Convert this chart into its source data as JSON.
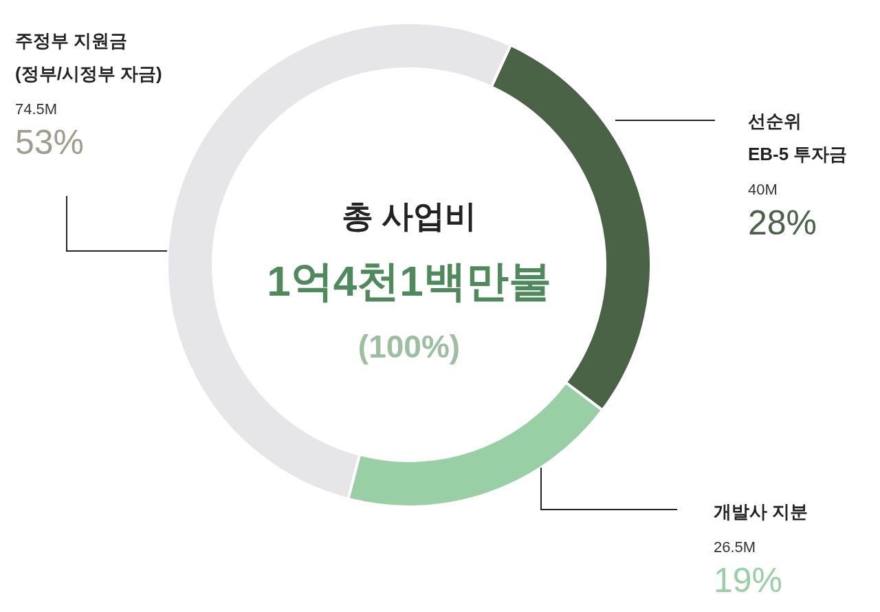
{
  "chart_data": {
    "type": "donut",
    "title": "총 사업비",
    "subtitle": "1억4천1백만불",
    "categories": [
      "선순위\nEB-5 투자금",
      "개발사 지분",
      "주정부 지원금\n(정부/시정부 자금)"
    ],
    "values": [
      40,
      26.5,
      74.5
    ],
    "colors": [
      "#4a6246",
      "#99cfa5",
      "#e6e6e8"
    ],
    "value_labels": [
      "40M",
      "26.5M",
      "74.5M"
    ],
    "annotations": [
      "28%",
      "19%",
      "53%",
      "(100%)"
    ]
  }
}
